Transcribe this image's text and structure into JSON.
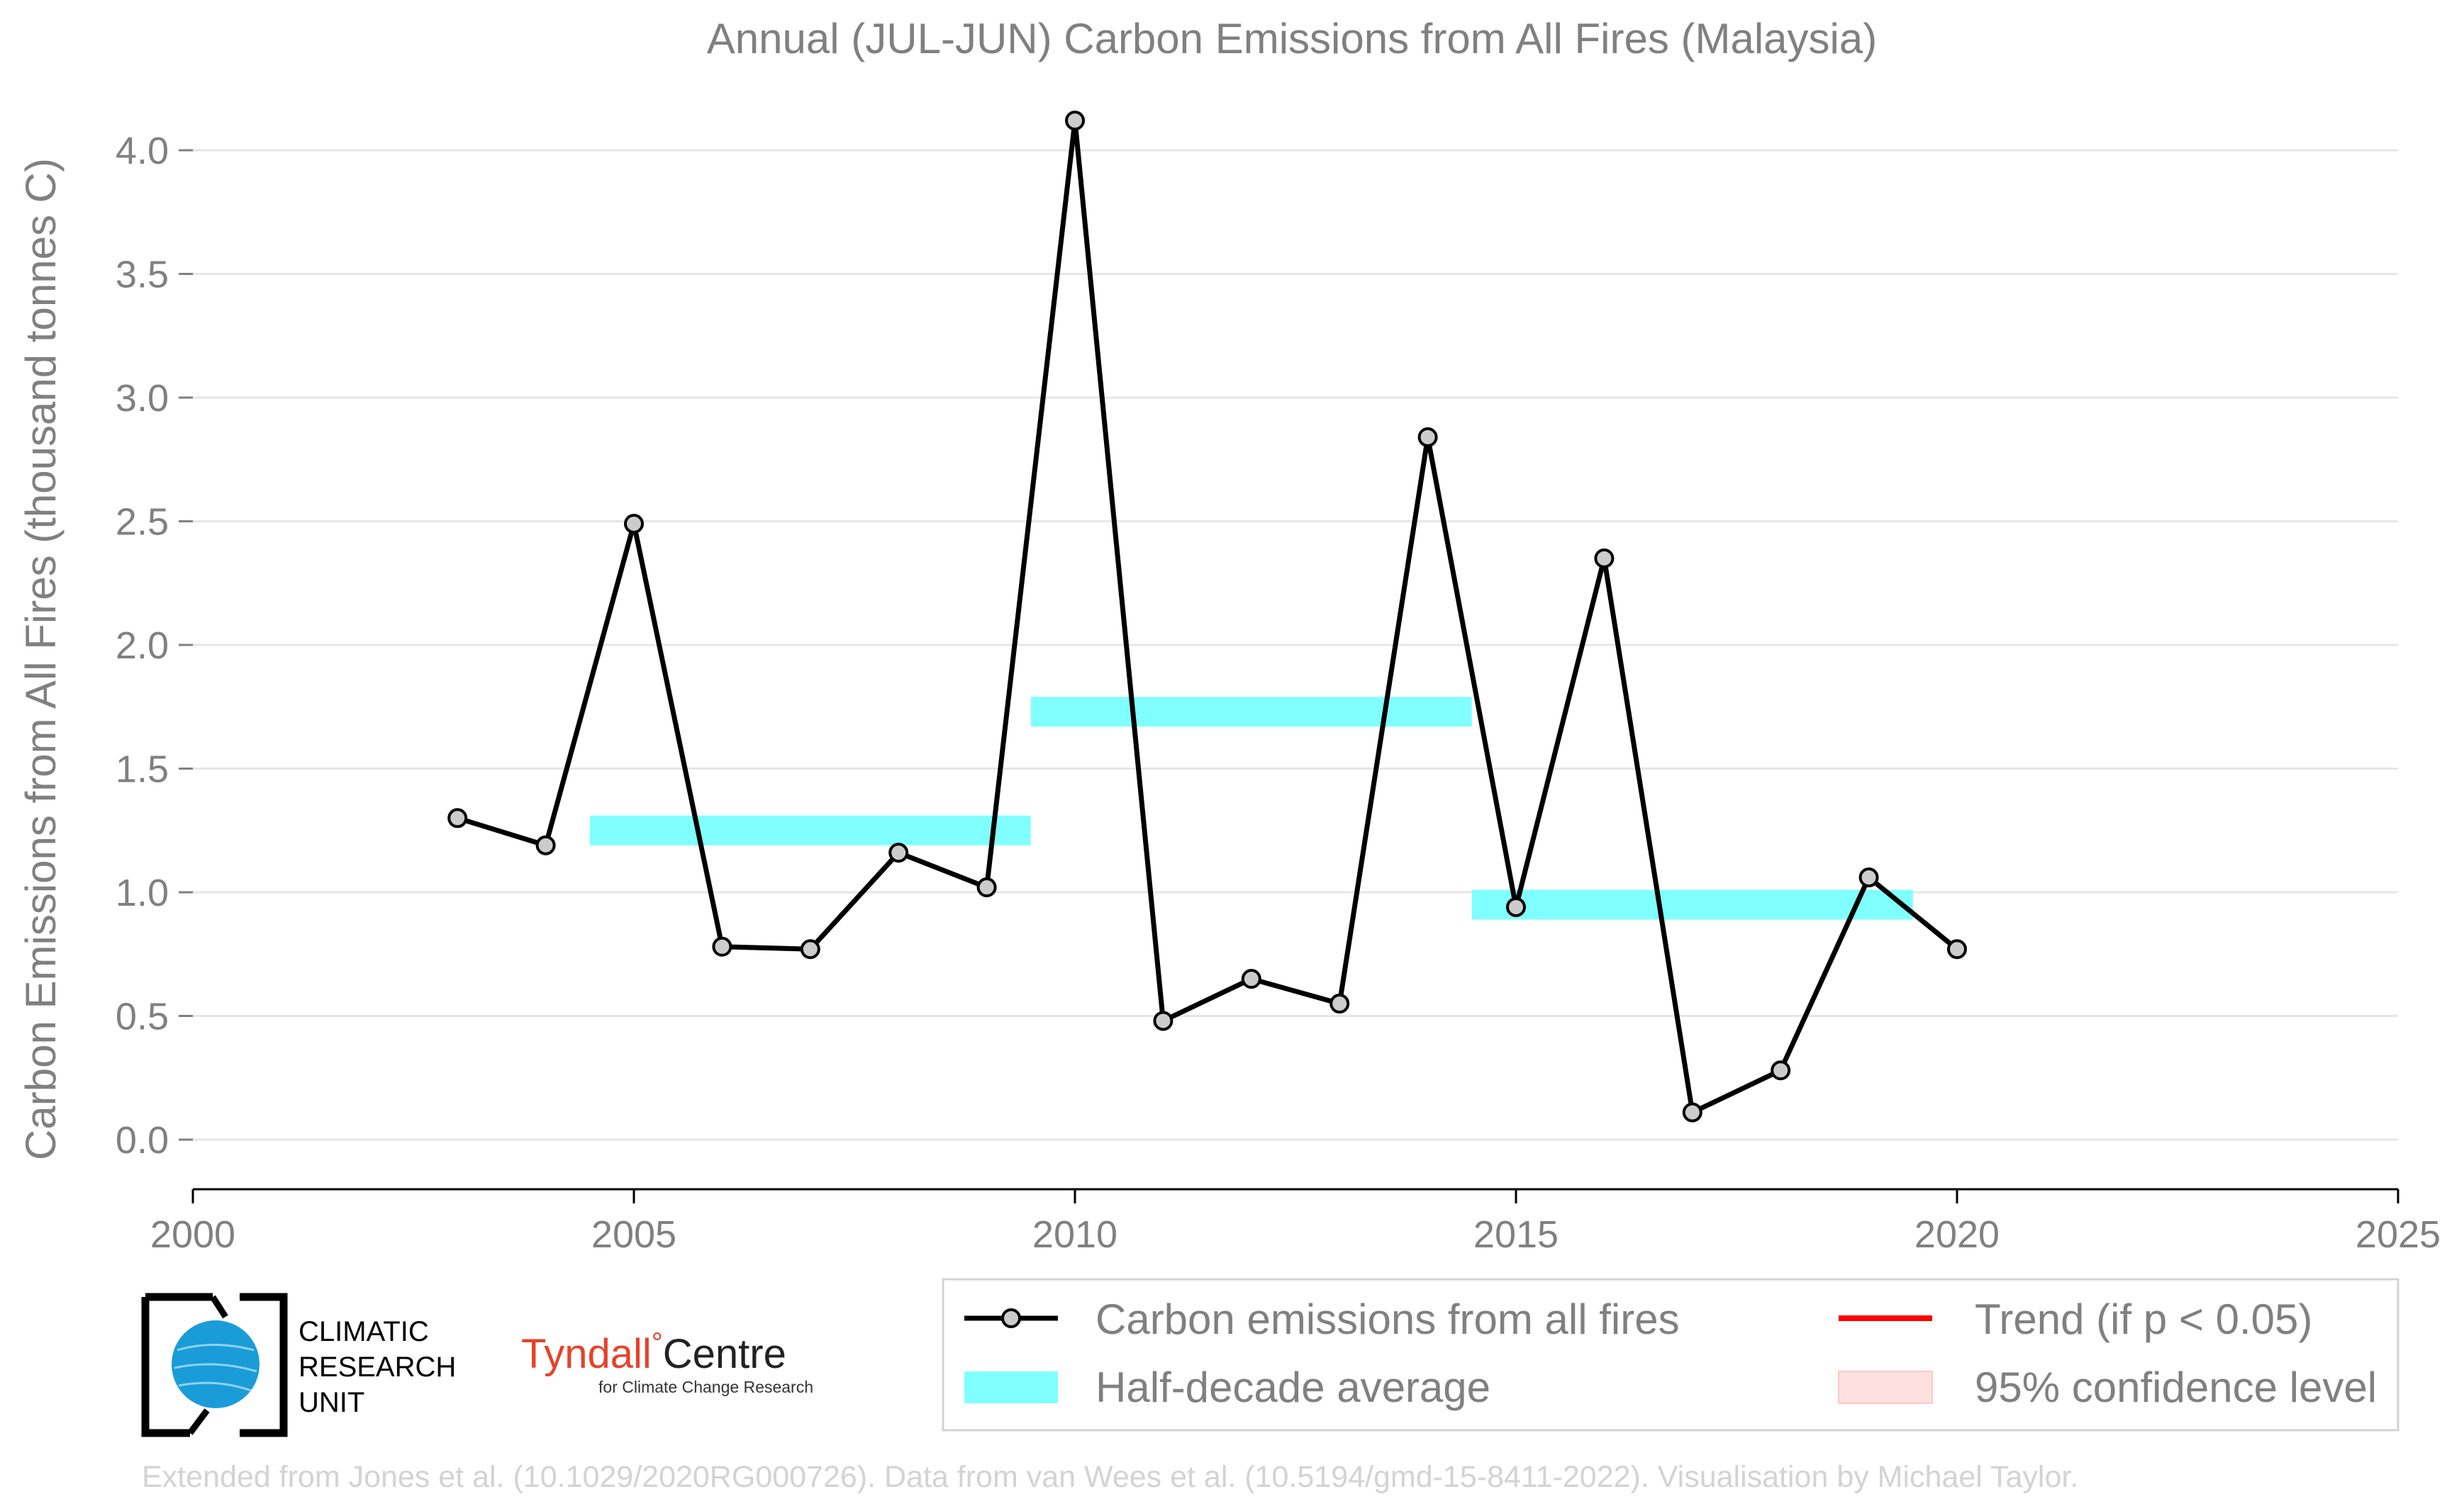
{
  "chart_data": {
    "type": "line",
    "title": "Annual (JUL-JUN) Carbon Emissions from All Fires (Malaysia)",
    "ylabel": "Carbon Emissions from All Fires (thousand tonnes C)",
    "xlabel": "",
    "xlim": [
      2000,
      2025
    ],
    "ylim": [
      0,
      4.0
    ],
    "x_ticks": [
      2000,
      2005,
      2010,
      2015,
      2020,
      2025
    ],
    "y_ticks": [
      0.0,
      0.5,
      1.0,
      1.5,
      2.0,
      2.5,
      3.0,
      3.5,
      4.0
    ],
    "y_tick_labels": [
      "0.0",
      "0.5",
      "1.0",
      "1.5",
      "2.0",
      "2.5",
      "3.0",
      "3.5",
      "4.0"
    ],
    "grid": "horizontal",
    "legend_placement": "bottom-right",
    "series": [
      {
        "name": "Carbon emissions from all fires",
        "type": "line",
        "color": "#000000",
        "marker_fill": "#cccccc",
        "x": [
          2003,
          2004,
          2005,
          2006,
          2007,
          2008,
          2009,
          2010,
          2011,
          2012,
          2013,
          2014,
          2015,
          2016,
          2017,
          2018,
          2019,
          2020
        ],
        "y": [
          1.3,
          1.19,
          2.49,
          0.78,
          0.77,
          1.16,
          1.02,
          4.12,
          0.48,
          0.65,
          0.55,
          2.84,
          0.94,
          2.35,
          0.11,
          0.28,
          1.06,
          0.77
        ]
      },
      {
        "name": "Half-decade average",
        "type": "segments",
        "color": "#80ffff",
        "segments": [
          {
            "x0": 2004.5,
            "x1": 2009.5,
            "y": 1.25
          },
          {
            "x0": 2009.5,
            "x1": 2014.5,
            "y": 1.73
          },
          {
            "x0": 2014.5,
            "x1": 2019.5,
            "y": 0.95
          }
        ]
      }
    ],
    "legend": [
      {
        "label": "Carbon emissions from all fires",
        "symbol": "line-marker",
        "color": "#000000"
      },
      {
        "label": "Trend (if p < 0.05)",
        "symbol": "line",
        "color": "#ff0000"
      },
      {
        "label": "Half-decade average",
        "symbol": "patch",
        "color": "#80ffff"
      },
      {
        "label": "95% confidence level",
        "symbol": "patch",
        "color": "#ffe0e0"
      }
    ]
  },
  "logos": {
    "cru": {
      "line1": "CLIMATIC",
      "line2": "RESEARCH",
      "line3": "UNIT"
    },
    "tyndall": {
      "name_left": "Tyndall",
      "name_sup": "°",
      "name_right": "Centre",
      "subtitle": "for Climate Change Research"
    }
  },
  "footer": "Extended from Jones et al. (10.1029/2020RG000726). Data from van Wees et al. (10.5194/gmd-15-8411-2022). Visualisation by Michael Taylor."
}
